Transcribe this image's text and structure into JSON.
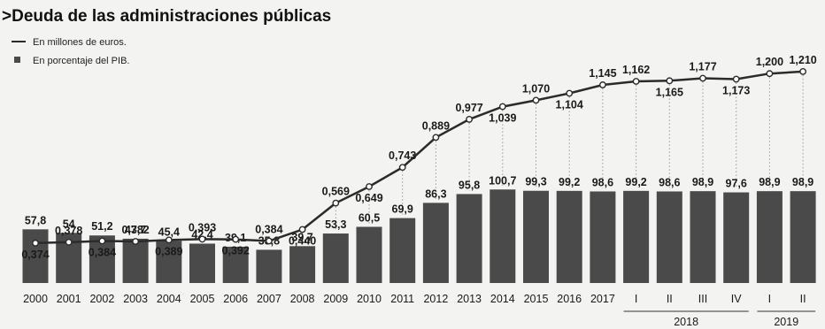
{
  "chart_data": {
    "type": "bar+line",
    "title": "Deuda de las administraciones públicas",
    "categories": [
      "2000",
      "2001",
      "2002",
      "2003",
      "2004",
      "2005",
      "2006",
      "2007",
      "2008",
      "2009",
      "2010",
      "2011",
      "2012",
      "2013",
      "2014",
      "2015",
      "2016",
      "2017",
      "I",
      "II",
      "III",
      "IV",
      "I",
      "II"
    ],
    "year_groups": [
      {
        "label": "2018",
        "quarters": [
          "I",
          "II",
          "III",
          "IV"
        ]
      },
      {
        "label": "2019",
        "quarters": [
          "I",
          "II"
        ]
      }
    ],
    "series": [
      {
        "name": "En millones de euros.",
        "kind": "line",
        "values": [
          0.374,
          0.378,
          0.384,
          0.382,
          0.389,
          0.393,
          0.392,
          0.384,
          0.44,
          0.569,
          0.649,
          0.743,
          0.889,
          0.977,
          1.039,
          1.07,
          1.104,
          1.145,
          1.162,
          1.165,
          1.177,
          1.173,
          1.2,
          1.21
        ],
        "labels": [
          "0,374",
          "0,378",
          "0,384",
          "0,382",
          "0,389",
          "0,393",
          "0,392",
          "0,384",
          "0,440",
          "0,569",
          "0,649",
          "0,743",
          "0,889",
          "0,977",
          "1,039",
          "1,070",
          "1,104",
          "1,145",
          "1,162",
          "1,165",
          "1,177",
          "1,173",
          "1,200",
          "1,210"
        ],
        "label_pos": [
          "below",
          "above",
          "below",
          "above",
          "below",
          "above",
          "below",
          "above",
          "below",
          "above",
          "below",
          "above",
          "above",
          "above",
          "below",
          "above",
          "below",
          "above",
          "above",
          "below",
          "above",
          "below",
          "above",
          "above"
        ]
      },
      {
        "name": "En porcentaje del PIB.",
        "kind": "bar",
        "values": [
          57.8,
          54,
          51.2,
          47.7,
          45.4,
          42.4,
          39.1,
          35.8,
          39.7,
          53.3,
          60.5,
          69.9,
          86.3,
          95.8,
          100.7,
          99.3,
          99.2,
          98.6,
          99.2,
          98.6,
          98.9,
          97.6,
          98.9,
          98.9
        ],
        "labels": [
          "57,8",
          "54",
          "51,2",
          "47,7",
          "45,4",
          "42,4",
          "39,1",
          "35,8",
          "39,7",
          "53,3",
          "60,5",
          "69,9",
          "86,3",
          "95,8",
          "100,7",
          "99,3",
          "99,2",
          "98,6",
          "99,2",
          "98,6",
          "98,9",
          "97,6",
          "98,9",
          "98,9"
        ]
      }
    ],
    "grid": false,
    "legend_placement": "top-left"
  },
  "colors": {
    "bar": "#4a4a4a",
    "line": "#2b2b2b",
    "marker_fill": "#ffffff",
    "dotted": "#9a9a9a",
    "background": "#f3f3f1"
  }
}
